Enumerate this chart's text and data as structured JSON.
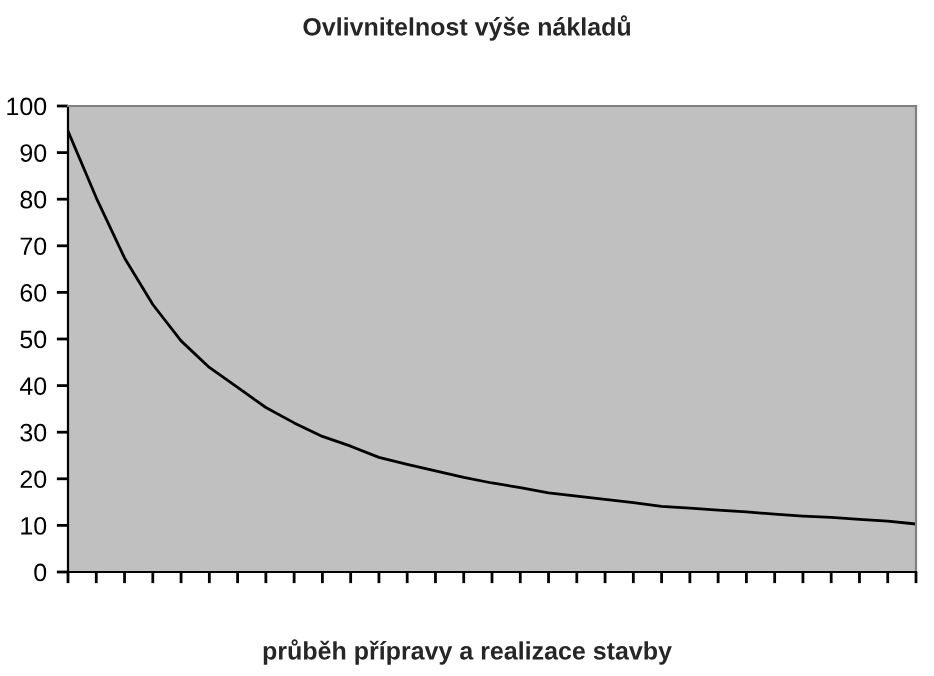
{
  "chart_data": {
    "type": "line",
    "title": "Ovlivnitelnost výše nákladů",
    "xlabel": "průběh přípravy a realizace stavby",
    "categories": [
      null,
      null,
      null,
      null,
      null,
      null,
      null,
      null,
      null,
      null,
      null,
      null,
      null,
      null,
      null,
      null,
      null,
      null,
      null,
      null,
      null,
      null,
      null,
      null,
      null,
      null,
      null,
      null,
      null,
      null,
      null
    ],
    "series": [
      {
        "color": "#000000",
        "values": [
          94.6,
          80.3,
          67.4,
          57.4,
          49.6,
          43.9,
          39.6,
          35.3,
          32,
          29.1,
          27,
          24.6,
          23.1,
          21.7,
          20.3,
          19.1,
          18.1,
          17,
          16.3,
          15.6,
          14.9,
          14.1,
          13.7,
          13.3,
          12.9,
          12.4,
          12,
          11.7,
          11.3,
          10.9,
          10.3
        ]
      }
    ],
    "ylim": [
      0,
      100
    ],
    "yticks": [
      0,
      10,
      20,
      30,
      40,
      50,
      60,
      70,
      80,
      90,
      100
    ],
    "grid": false,
    "marker": "none",
    "line_style": "solid"
  }
}
